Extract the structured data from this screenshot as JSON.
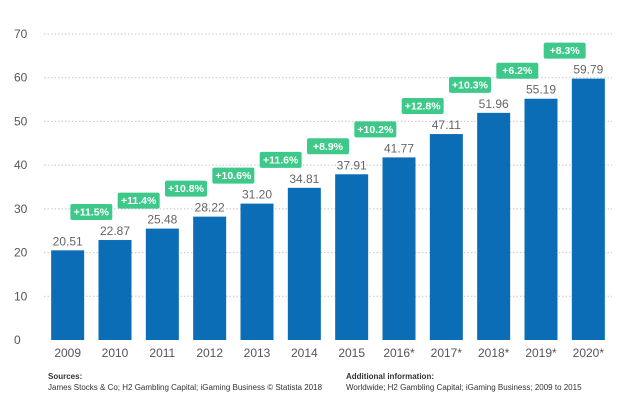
{
  "chart_data": {
    "type": "bar",
    "categories": [
      "2009",
      "2010",
      "2011",
      "2012",
      "2013",
      "2014",
      "2015",
      "2016*",
      "2017*",
      "2018*",
      "2019*",
      "2020*"
    ],
    "values": [
      20.51,
      22.87,
      25.48,
      28.22,
      31.2,
      34.81,
      37.91,
      41.77,
      47.11,
      51.96,
      55.19,
      59.79
    ],
    "value_labels": [
      "20.51",
      "22.87",
      "25.48",
      "28.22",
      "31.20",
      "34.81",
      "37.91",
      "41.77",
      "47.11",
      "51.96",
      "55.19",
      "59.79"
    ],
    "growth": [
      "+11.5%",
      "+11.4%",
      "+10.8%",
      "+10.6%",
      "+11.6%",
      "+8.9%",
      "+10.2%",
      "+12.8%",
      "+10.3%",
      "+6.2%",
      "+8.3%"
    ],
    "ylim": [
      0,
      70
    ],
    "yticks": [
      0,
      10,
      20,
      30,
      40,
      50,
      60,
      70
    ],
    "grid": true,
    "title": "",
    "xlabel": "",
    "ylabel": "",
    "colors": {
      "bar": "#0a6db5",
      "growth": "#3ec98b",
      "grid": "#c8c8c8"
    }
  },
  "footer": {
    "sources_heading": "Sources:",
    "sources_text": "James Stocks & Co; H2 Gambling Capital; iGaming Business © Statista 2018",
    "info_heading": "Additional information:",
    "info_text": "Worldwide; H2 Gambling Capital; iGaming Business; 2009 to 2015"
  }
}
